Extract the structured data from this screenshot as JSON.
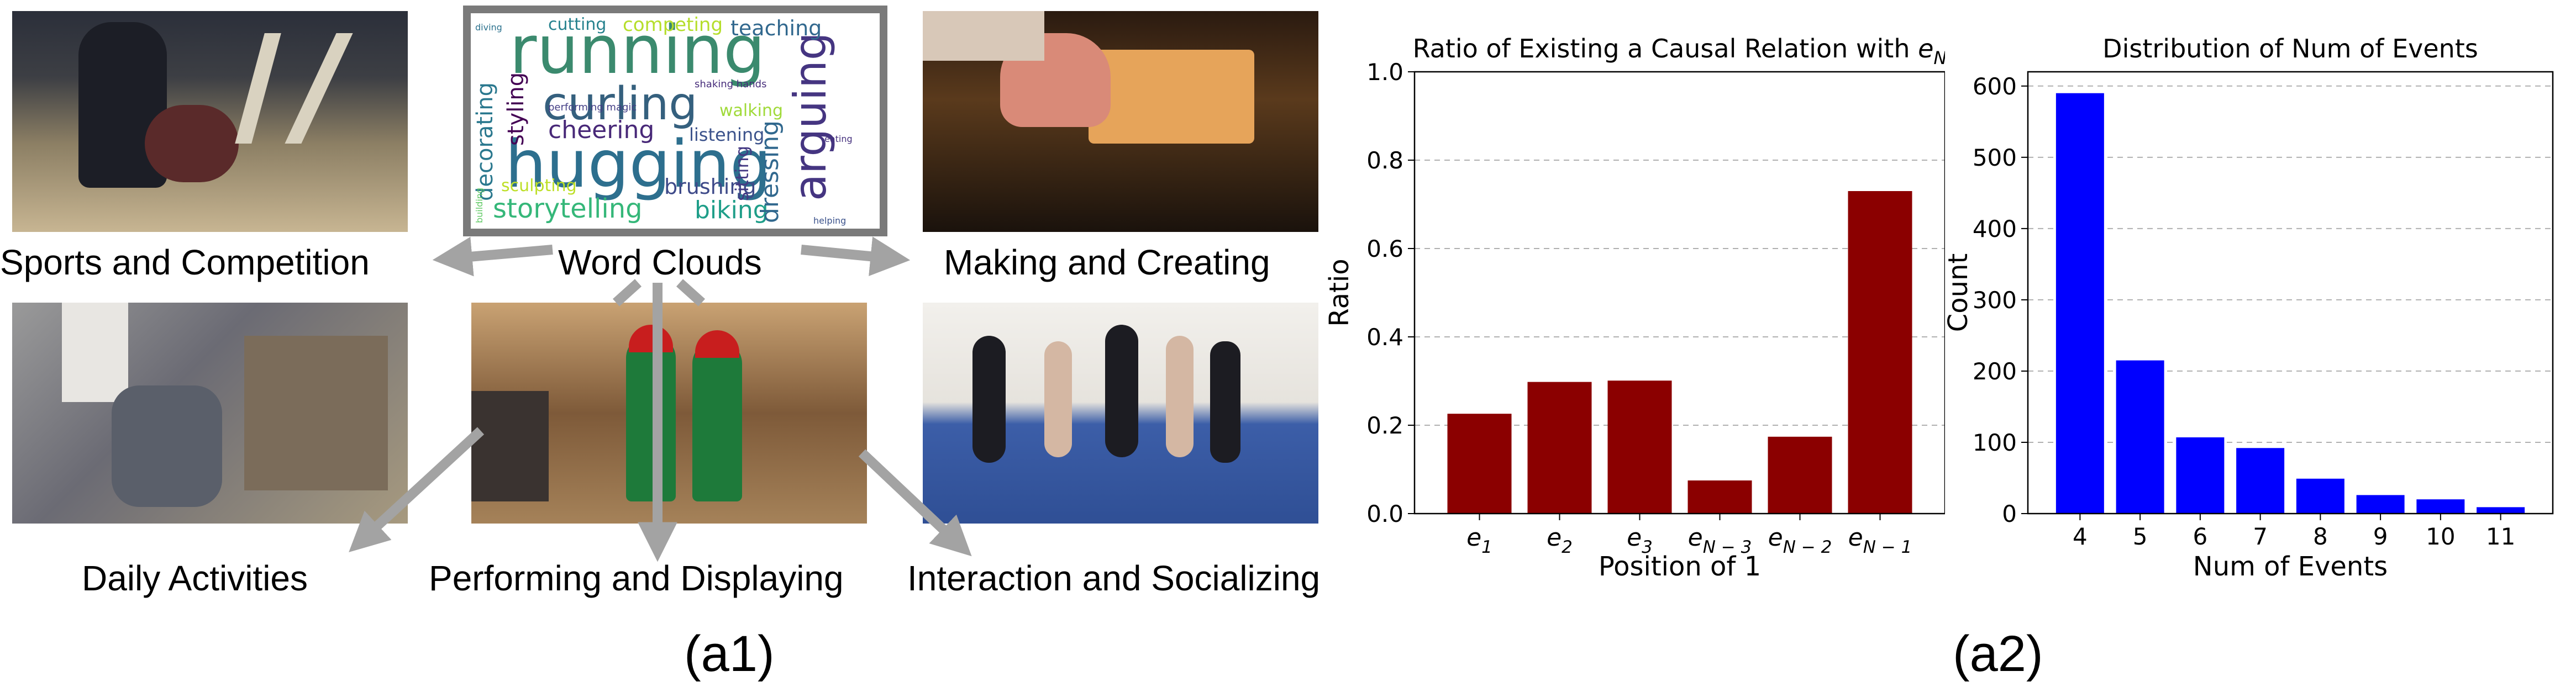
{
  "figure": {
    "panel_a1_label": "(a1)",
    "panel_a2_label": "(a2)"
  },
  "panel_a1": {
    "center_label": "Word Clouds",
    "categories": [
      "Sports and Competition",
      "Making and Creating",
      "Daily Activities",
      "Performing and Displaying",
      "Interaction and Socializing"
    ],
    "word_cloud_words": [
      "running",
      "curling",
      "hugging",
      "arguing",
      "decorating",
      "styling",
      "cheering",
      "storytelling",
      "biking",
      "brushing",
      "dressing",
      "sitting",
      "sculpting",
      "competing",
      "teaching",
      "cutting",
      "listening",
      "walking",
      "performing magic",
      "shaking hands",
      "diving",
      "helping",
      "building",
      "eating"
    ],
    "photos": [
      {
        "name": "bowling-photo",
        "caption": "Sports and Competition"
      },
      {
        "name": "oven-baking-photo",
        "caption": "Making and Creating"
      },
      {
        "name": "market-stall-photo",
        "caption": "Daily Activities"
      },
      {
        "name": "costumed-performers-photo",
        "caption": "Performing and Displaying"
      },
      {
        "name": "cheerleading-photo",
        "caption": "Interaction and Socializing"
      }
    ]
  },
  "chart_data": [
    {
      "type": "bar",
      "title": "Ratio of Existing a Causal Relation with e_N",
      "title_text": "Ratio of Existing a Causal Relation with ",
      "title_math": "e",
      "title_math_sub": "N",
      "xlabel": "Position of 1",
      "ylabel": "Ratio",
      "categories": [
        {
          "base": "e",
          "sub": "1"
        },
        {
          "base": "e",
          "sub": "2"
        },
        {
          "base": "e",
          "sub": "3"
        },
        {
          "base": "e",
          "sub": "N − 3"
        },
        {
          "base": "e",
          "sub": "N − 2"
        },
        {
          "base": "e",
          "sub": "N − 1"
        }
      ],
      "values": [
        0.226,
        0.298,
        0.301,
        0.075,
        0.174,
        0.73
      ],
      "ylim": [
        0,
        1.0
      ],
      "yticks": [
        "0.0",
        "0.2",
        "0.4",
        "0.6",
        "0.8",
        "1.0"
      ],
      "grid": "horizontal dashed",
      "color": "#8b0000"
    },
    {
      "type": "bar",
      "title": "Distribution of Num of Events",
      "xlabel": "Num of Events",
      "ylabel": "Count",
      "categories": [
        "4",
        "5",
        "6",
        "7",
        "8",
        "9",
        "10",
        "11"
      ],
      "values": [
        590,
        215,
        107,
        92,
        49,
        26,
        20,
        9
      ],
      "ylim": [
        0,
        620
      ],
      "yticks": [
        "0",
        "100",
        "200",
        "300",
        "400",
        "500",
        "600"
      ],
      "grid": "horizontal dashed",
      "color": "#0000ff"
    }
  ]
}
